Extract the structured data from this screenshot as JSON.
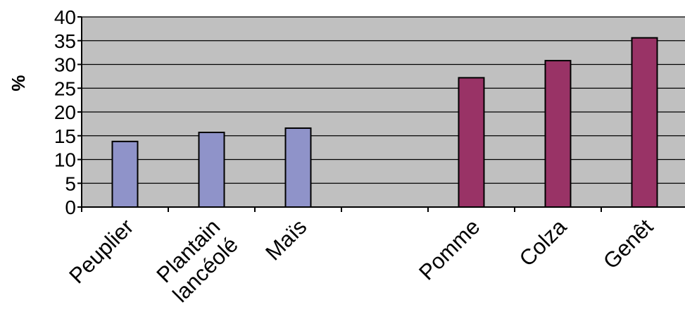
{
  "chart_data": {
    "type": "bar",
    "title": "",
    "xlabel": "",
    "ylabel": "%",
    "ylim": [
      0,
      40
    ],
    "yticks": [
      0,
      5,
      10,
      15,
      20,
      25,
      30,
      35,
      40
    ],
    "grid": true,
    "categories": [
      "Peuplier",
      "Plantain lancéolé",
      "Maïs",
      "",
      "Pomme",
      "Colza",
      "Genêt"
    ],
    "category_label_lines": [
      [
        "Peuplier"
      ],
      [
        "Plantain",
        "lancéolé"
      ],
      [
        "Maïs"
      ],
      [
        ""
      ],
      [
        "Pomme"
      ],
      [
        "Colza"
      ],
      [
        "Genêt"
      ]
    ],
    "values": [
      13.8,
      15.7,
      16.6,
      null,
      27.2,
      30.8,
      35.6
    ],
    "bar_colors": [
      "#8f93c9",
      "#8f93c9",
      "#8f93c9",
      null,
      "#993366",
      "#993366",
      "#993366"
    ],
    "plot_background": "#c0c0c0",
    "gridline_color": "#000000"
  }
}
